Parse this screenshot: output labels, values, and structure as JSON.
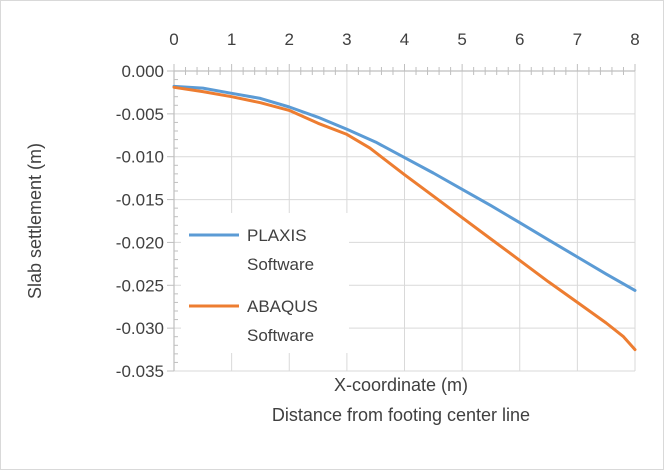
{
  "chart_data": {
    "type": "line",
    "title": "",
    "xlabel": "X-coordinate (m)",
    "xlabel_sub": "Distance from footing center line",
    "ylabel": "Slab settlement (m)",
    "xlim": [
      0,
      8
    ],
    "ylim": [
      -0.035,
      0.0
    ],
    "x_ticks": [
      0,
      1,
      2,
      3,
      4,
      5,
      6,
      7,
      8
    ],
    "y_ticks": [
      0.0,
      -0.005,
      -0.01,
      -0.015,
      -0.02,
      -0.025,
      -0.03,
      -0.035
    ],
    "y_tick_labels": [
      "0.000",
      "-0.005",
      "-0.010",
      "-0.015",
      "-0.020",
      "-0.025",
      "-0.030",
      "-0.035"
    ],
    "x_axis_position": "top",
    "grid": true,
    "legend_placement": "bottom-left",
    "series": [
      {
        "name": "PLAXIS Software",
        "legend_lines": [
          "PLAXIS",
          "Software"
        ],
        "color": "#5b9bd5",
        "x": [
          0,
          0.5,
          1,
          1.5,
          2,
          2.5,
          3,
          3.5,
          4,
          4.5,
          5,
          5.5,
          6,
          6.5,
          7,
          7.5,
          8
        ],
        "y": [
          -0.0018,
          -0.002,
          -0.0026,
          -0.0032,
          -0.0042,
          -0.0054,
          -0.0068,
          -0.0083,
          -0.0101,
          -0.0119,
          -0.0138,
          -0.0157,
          -0.0177,
          -0.0197,
          -0.0217,
          -0.0237,
          -0.0256
        ]
      },
      {
        "name": "ABAQUS Software",
        "legend_lines": [
          "ABAQUS",
          "Software"
        ],
        "color": "#ed7d31",
        "x": [
          0,
          0.5,
          1,
          1.5,
          2,
          2.5,
          3,
          3.4,
          4,
          4.5,
          5,
          5.5,
          6,
          6.5,
          7,
          7.5,
          7.8,
          8
        ],
        "y": [
          -0.0019,
          -0.0024,
          -0.003,
          -0.0037,
          -0.0046,
          -0.0061,
          -0.0074,
          -0.009,
          -0.0121,
          -0.0146,
          -0.0171,
          -0.0196,
          -0.0221,
          -0.0246,
          -0.027,
          -0.0294,
          -0.031,
          -0.0325
        ]
      }
    ]
  }
}
